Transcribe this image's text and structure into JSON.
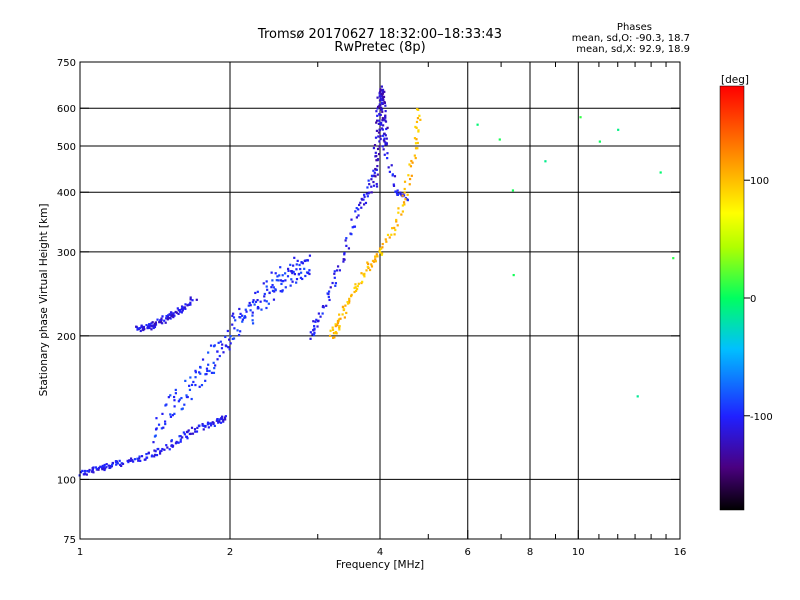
{
  "header": {
    "title": "Tromsø 20170627 18:32:00–18:33:43",
    "subtitle": "RwPretec (8p)",
    "phases_heading": "Phases",
    "phases_o": "mean, sd,O: -90.3, 18.7",
    "phases_x": "mean, sd,X:  92.9, 18.9"
  },
  "chart_data": {
    "type": "scatter",
    "title": "Tromsø 20170627 18:32:00–18:33:43",
    "subtitle": "RwPretec (8p)",
    "xlabel": "Frequency [MHz]",
    "ylabel": "Stationary phase Virtual Height [km]",
    "xscale": "log",
    "yscale": "log",
    "xlim": [
      1,
      16
    ],
    "ylim": [
      75,
      750
    ],
    "xticks": [
      1,
      2,
      4,
      6,
      8,
      10,
      16
    ],
    "xtick_labels": [
      "1",
      "2",
      "4",
      "6",
      "8",
      "10",
      "16"
    ],
    "xgrid_lines": [
      2,
      4,
      6,
      8,
      10
    ],
    "yticks": [
      75,
      100,
      200,
      300,
      400,
      500,
      600,
      750
    ],
    "ytick_labels": [
      "75",
      "100",
      "200",
      "300",
      "400",
      "500",
      "600",
      "750"
    ],
    "ygrid_lines": [
      100,
      200,
      300,
      400,
      500,
      600
    ],
    "colorbar": {
      "label": "[deg]",
      "range": [
        -180,
        180
      ],
      "ticks": [
        100,
        0,
        -100
      ],
      "tick_labels": [
        "100",
        "0",
        "-100"
      ]
    },
    "legend": "none",
    "point_color_by": "phase (deg)",
    "series": [
      {
        "name": "O-mode lower trace",
        "phase_deg": -105,
        "x": [
          1.0,
          1.05,
          1.1,
          1.15,
          1.2,
          1.3,
          1.4,
          1.5,
          1.6,
          1.7,
          1.8,
          1.9,
          1.95
        ],
        "y": [
          103,
          104,
          106,
          107,
          108,
          110,
          113,
          117,
          122,
          127,
          130,
          133,
          134
        ]
      },
      {
        "name": "O-mode cloud 1.4–2.9 MHz",
        "phase_deg": -95,
        "x": [
          1.4,
          1.5,
          1.6,
          1.7,
          1.8,
          1.9,
          2.0,
          2.1,
          2.2,
          2.3,
          2.4,
          2.5,
          2.6,
          2.7,
          2.8,
          2.9
        ],
        "y": [
          125,
          140,
          150,
          160,
          170,
          185,
          200,
          215,
          225,
          240,
          250,
          260,
          265,
          275,
          280,
          290
        ]
      },
      {
        "name": "O-mode upper trace",
        "phase_deg": -110,
        "x": [
          1.3,
          1.35,
          1.4,
          1.45,
          1.5,
          1.55,
          1.6,
          1.7
        ],
        "y": [
          206,
          208,
          210,
          214,
          219,
          223,
          228,
          240
        ]
      },
      {
        "name": "O-mode F-layer",
        "phase_deg": -105,
        "x": [
          2.9,
          3.0,
          3.2,
          3.4,
          3.6,
          3.8,
          3.9,
          4.0,
          4.1,
          4.3,
          4.5
        ],
        "y": [
          200,
          215,
          250,
          300,
          370,
          400,
          450,
          650,
          500,
          400,
          390
        ]
      },
      {
        "name": "Near-vertical O-trace ~4 MHz",
        "phase_deg": -120,
        "x": [
          3.9,
          3.95,
          4.0,
          4.02,
          4.05,
          4.08,
          4.1
        ],
        "y": [
          400,
          500,
          600,
          660,
          620,
          560,
          500
        ]
      },
      {
        "name": "X-mode trace",
        "phase_deg": 100,
        "x": [
          3.2,
          3.3,
          3.4,
          3.6,
          3.8,
          4.0,
          4.3,
          4.5,
          4.7,
          4.8
        ],
        "y": [
          200,
          210,
          230,
          255,
          280,
          300,
          340,
          400,
          500,
          600
        ]
      },
      {
        "name": "Scattered high-frequency points",
        "phase_deg": 0,
        "x": [
          6.3,
          7.0,
          7.3,
          7.5,
          8.5,
          10,
          11,
          12,
          13,
          14.5,
          15.5
        ],
        "y": [
          550,
          510,
          400,
          270,
          470,
          580,
          510,
          540,
          150,
          440,
          290
        ]
      }
    ]
  }
}
